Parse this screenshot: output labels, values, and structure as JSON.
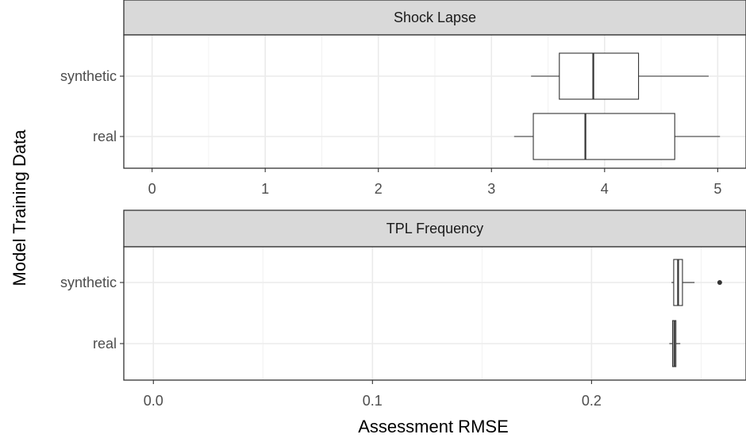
{
  "chart_data": {
    "type": "boxplot",
    "xlabel": "Assessment RMSE",
    "ylabel": "Model Training Data",
    "categories": [
      "synthetic",
      "real"
    ],
    "grid": true,
    "panels": [
      {
        "title": "Shock Lapse",
        "xlim": [
          -0.25,
          5.25
        ],
        "xticks": [
          0,
          1,
          2,
          3,
          4,
          5
        ],
        "xtick_labels": [
          "0",
          "1",
          "2",
          "3",
          "4",
          "5"
        ],
        "boxes": [
          {
            "category": "synthetic",
            "min": 3.35,
            "q1": 3.6,
            "median": 3.9,
            "q3": 4.3,
            "max": 4.92,
            "outliers": []
          },
          {
            "category": "real",
            "min": 3.2,
            "q1": 3.37,
            "median": 3.83,
            "q3": 4.62,
            "max": 5.02,
            "outliers": []
          }
        ]
      },
      {
        "title": "TPL Frequency",
        "xlim": [
          -0.0135,
          0.2705
        ],
        "xticks": [
          0.0,
          0.1,
          0.2
        ],
        "xtick_labels": [
          "0.0",
          "0.1",
          "0.2"
        ],
        "boxes": [
          {
            "category": "synthetic",
            "min": 0.2365,
            "q1": 0.2375,
            "median": 0.2395,
            "q3": 0.2415,
            "max": 0.247,
            "outliers": [
              0.2585
            ]
          },
          {
            "category": "real",
            "min": 0.2355,
            "q1": 0.237,
            "median": 0.2378,
            "q3": 0.2385,
            "max": 0.2405,
            "outliers": []
          }
        ]
      }
    ]
  }
}
